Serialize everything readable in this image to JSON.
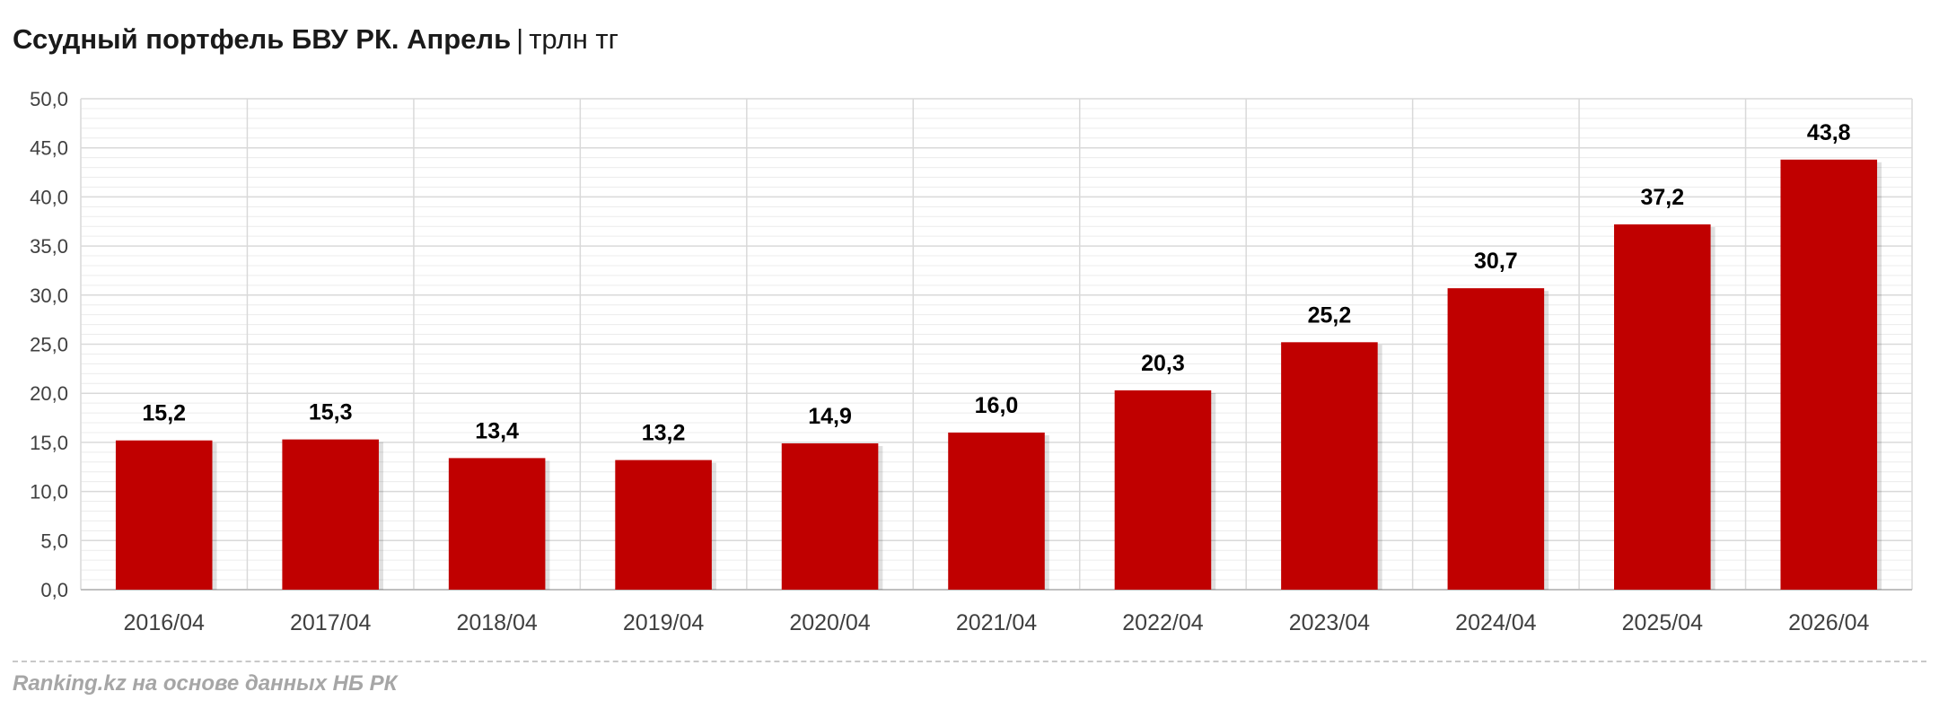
{
  "title": {
    "main": "Ссудный портфель БВУ РК. Апрель",
    "separator": "|",
    "unit": "трлн тг"
  },
  "source": "Ranking.kz на основе данных НБ РК",
  "colors": {
    "bar": "#c00000",
    "grid": "#d9d9d9",
    "axis_text": "#404040",
    "label_text": "#000000"
  },
  "chart_data": {
    "type": "bar",
    "categories": [
      "2016/04",
      "2017/04",
      "2018/04",
      "2019/04",
      "2020/04",
      "2021/04",
      "2022/04",
      "2023/04",
      "2024/04",
      "2025/04",
      "2026/04"
    ],
    "values": [
      15.2,
      15.3,
      13.4,
      13.2,
      14.9,
      16.0,
      20.3,
      25.2,
      30.7,
      37.2,
      43.8
    ],
    "value_labels": [
      "15,2",
      "15,3",
      "13,4",
      "13,2",
      "14,9",
      "16,0",
      "20,3",
      "25,2",
      "30,7",
      "37,2",
      "43,8"
    ],
    "y_ticks": [
      "0,0",
      "5,0",
      "10,0",
      "15,0",
      "20,0",
      "25,0",
      "30,0",
      "35,0",
      "40,0",
      "45,0",
      "50,0"
    ],
    "ylim": [
      0,
      50
    ],
    "y_major_step": 5,
    "y_minor_step": 1,
    "grid": true,
    "legend": "none",
    "title": "Ссудный портфель БВУ РК. Апрель",
    "xlabel": "",
    "ylabel": ""
  }
}
